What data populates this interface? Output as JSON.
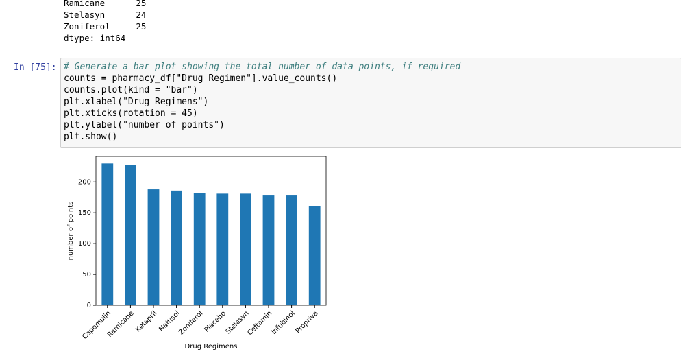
{
  "output": {
    "lines": [
      "Ramicane      25",
      "Stelasyn      24",
      "Zoniferol     25",
      "dtype: int64"
    ]
  },
  "cell": {
    "prompt": "In [75]:",
    "code": [
      "# Generate a bar plot showing the total number of data points, if required",
      "counts = pharmacy_df[\"Drug Regimen\"].value_counts()",
      "counts.plot(kind = \"bar\")",
      "plt.xlabel(\"Drug Regimens\")",
      "plt.xticks(rotation = 45)",
      "plt.ylabel(\"number of points\")",
      "plt.show()"
    ]
  },
  "chart_data": {
    "type": "bar",
    "categories": [
      "Capomulin",
      "Ramicane",
      "Ketapril",
      "Naftisol",
      "Zoniferol",
      "Placebo",
      "Stelasyn",
      "Ceftamin",
      "Infubinol",
      "Propriva"
    ],
    "values": [
      230,
      228,
      188,
      186,
      182,
      181,
      181,
      178,
      178,
      161
    ],
    "color": "#1f77b4",
    "xlabel": "Drug Regimens",
    "ylabel": "number of points",
    "ylim": [
      0,
      241.5
    ],
    "yticks": [
      0,
      50,
      100,
      150,
      200
    ],
    "grid": false
  }
}
